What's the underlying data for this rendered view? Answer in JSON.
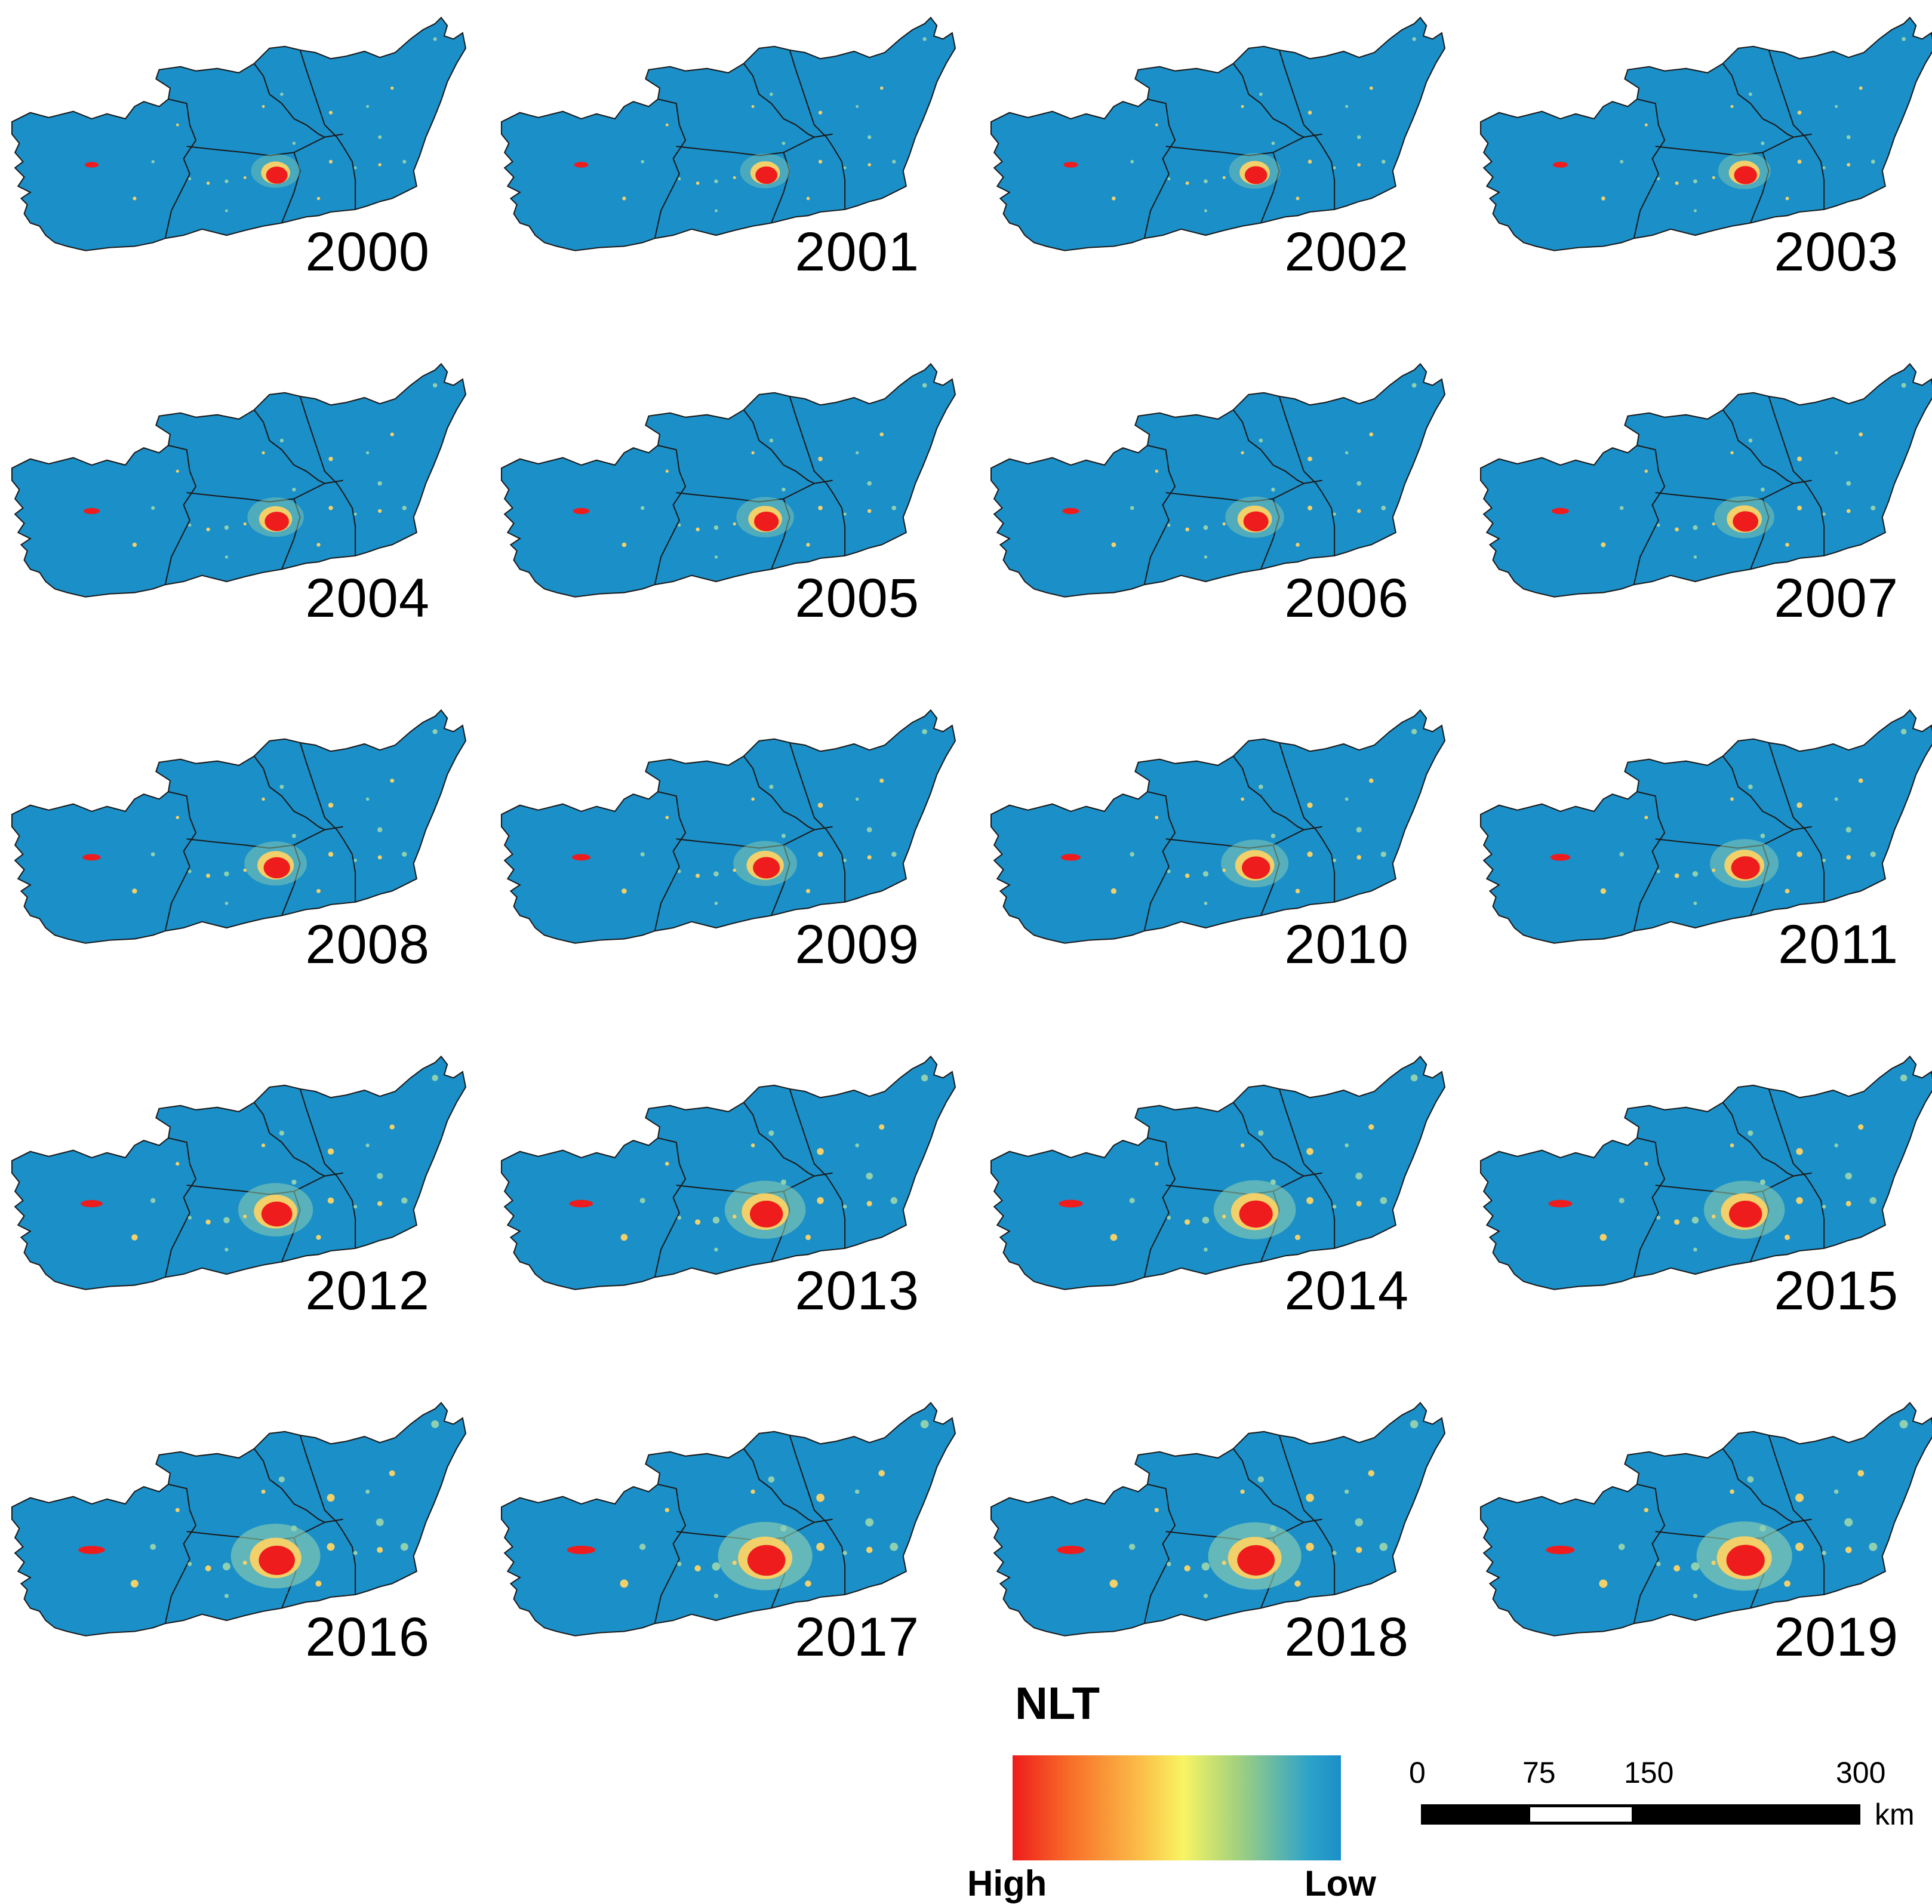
{
  "panels": [
    {
      "year": "2000",
      "intensity": 0.2
    },
    {
      "year": "2001",
      "intensity": 0.22
    },
    {
      "year": "2002",
      "intensity": 0.24
    },
    {
      "year": "2003",
      "intensity": 0.26
    },
    {
      "year": "2004",
      "intensity": 0.32
    },
    {
      "year": "2005",
      "intensity": 0.34
    },
    {
      "year": "2006",
      "intensity": 0.36
    },
    {
      "year": "2007",
      "intensity": 0.38
    },
    {
      "year": "2008",
      "intensity": 0.42
    },
    {
      "year": "2009",
      "intensity": 0.44
    },
    {
      "year": "2010",
      "intensity": 0.5
    },
    {
      "year": "2011",
      "intensity": 0.52
    },
    {
      "year": "2012",
      "intensity": 0.62
    },
    {
      "year": "2013",
      "intensity": 0.72
    },
    {
      "year": "2014",
      "intensity": 0.74
    },
    {
      "year": "2015",
      "intensity": 0.72
    },
    {
      "year": "2016",
      "intensity": 0.86
    },
    {
      "year": "2017",
      "intensity": 0.94
    },
    {
      "year": "2018",
      "intensity": 0.92
    },
    {
      "year": "2019",
      "intensity": 0.96
    }
  ],
  "legend": {
    "title": "NLT",
    "high_label": "High",
    "low_label": "Low",
    "colors": [
      "#ee1c1c",
      "#f8702a",
      "#fbc24a",
      "#f8f462",
      "#a6d27c",
      "#2ea3c8",
      "#1b8fc8"
    ]
  },
  "scalebar": {
    "ticks": [
      "0",
      "75",
      "150",
      "300"
    ],
    "unit": "km"
  },
  "colors": {
    "background_region": "#1b8fc8",
    "boundary": "#1a1a1a",
    "core": "#ee1c1c",
    "halo": "#f2d06a",
    "glow": "#8fd0b0"
  }
}
